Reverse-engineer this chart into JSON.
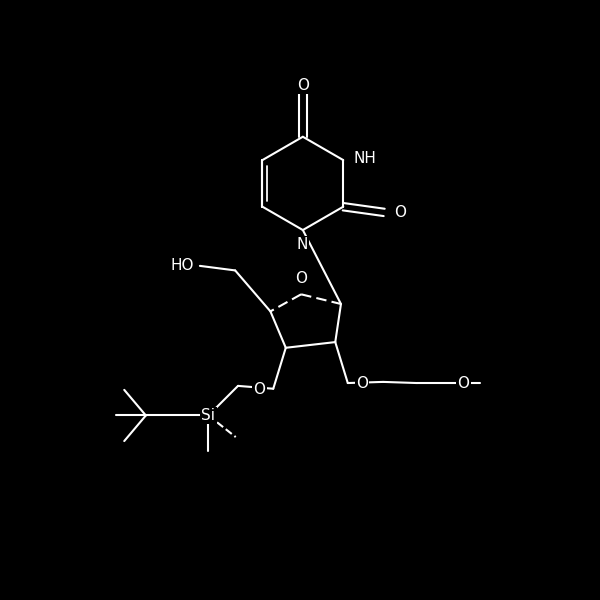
{
  "background_color": "#000000",
  "line_color": "#ffffff",
  "line_width": 1.5,
  "figsize": [
    6.0,
    6.0
  ],
  "dpi": 100,
  "xlim": [
    0.5,
    8.5
  ],
  "ylim": [
    1.0,
    11.5
  ]
}
